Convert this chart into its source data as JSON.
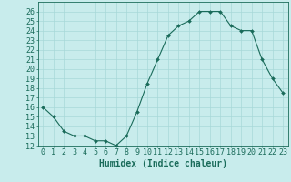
{
  "xlabel": "Humidex (Indice chaleur)",
  "x": [
    0,
    1,
    2,
    3,
    4,
    5,
    6,
    7,
    8,
    9,
    10,
    11,
    12,
    13,
    14,
    15,
    16,
    17,
    18,
    19,
    20,
    21,
    22,
    23
  ],
  "y": [
    16,
    15,
    13.5,
    13,
    13,
    12.5,
    12.5,
    12,
    13,
    15.5,
    18.5,
    21,
    23.5,
    24.5,
    25,
    26,
    26,
    26,
    24.5,
    24,
    24,
    21,
    19,
    17.5
  ],
  "line_color": "#1a6b5a",
  "marker_color": "#1a6b5a",
  "bg_color": "#c8ecec",
  "grid_color": "#a8d8d8",
  "tick_label_color": "#1a6b5a",
  "ylim": [
    12,
    27
  ],
  "xlim": [
    -0.5,
    23.5
  ],
  "yticks": [
    12,
    13,
    14,
    15,
    16,
    17,
    18,
    19,
    20,
    21,
    22,
    23,
    24,
    25,
    26
  ],
  "xticks": [
    0,
    1,
    2,
    3,
    4,
    5,
    6,
    7,
    8,
    9,
    10,
    11,
    12,
    13,
    14,
    15,
    16,
    17,
    18,
    19,
    20,
    21,
    22,
    23
  ],
  "xlabel_fontsize": 7,
  "tick_fontsize": 6
}
